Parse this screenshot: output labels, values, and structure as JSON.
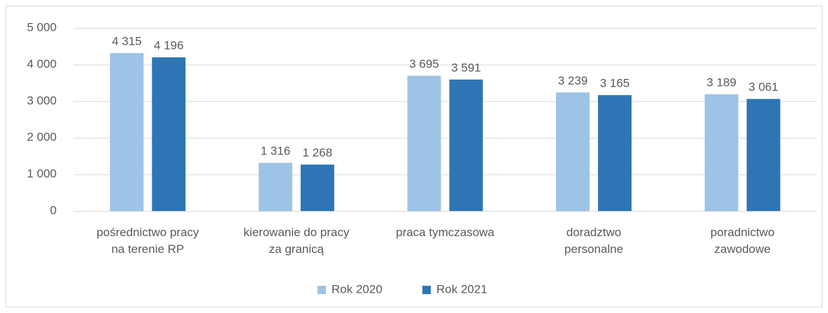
{
  "chart_data": {
    "type": "bar",
    "categories": [
      "pośrednictwo pracy\nna terenie RP",
      "kierowanie do pracy\nza granicą",
      "praca tymczasowa",
      "doradztwo\npersonalne",
      "poradnictwo\nzawodowe"
    ],
    "series": [
      {
        "name": "Rok 2020",
        "color": "#9dc3e6",
        "values": [
          4315,
          1316,
          3695,
          3239,
          3189
        ],
        "value_labels": [
          "4 315",
          "1 316",
          "3 695",
          "3 239",
          "3 189"
        ]
      },
      {
        "name": "Rok 2021",
        "color": "#2e75b6",
        "values": [
          4196,
          1268,
          3591,
          3165,
          3061
        ],
        "value_labels": [
          "4 196",
          "1 268",
          "3 591",
          "3 165",
          "3 061"
        ]
      }
    ],
    "ylim": [
      0,
      5000
    ],
    "yticks": [
      0,
      {
        "value": 1000,
        "label": "1 000"
      },
      {
        "value": 2000,
        "label": "2 000"
      },
      {
        "value": 3000,
        "label": "3 000"
      },
      {
        "value": 4000,
        "label": "4 000"
      },
      {
        "value": 5000,
        "label": "5 000"
      }
    ],
    "grid": true,
    "legend": "bottom"
  }
}
